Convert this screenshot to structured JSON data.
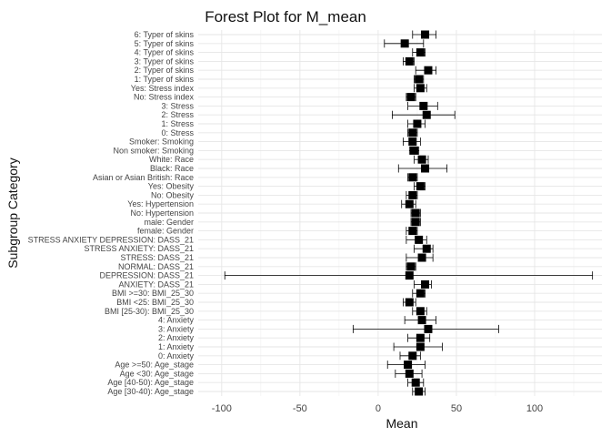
{
  "chart_data": {
    "type": "forest",
    "title": "Forest Plot for M_mean",
    "xlabel": "Mean",
    "ylabel": "Subgroup Category",
    "xlim": [
      -115,
      143
    ],
    "x_ticks": [
      -100,
      -50,
      0,
      50,
      100
    ],
    "grid": true,
    "legend": "none",
    "categories": [
      "6: Typer of skins",
      "5: Typer of skins",
      "4: Typer of skins",
      "3: Typer of skins",
      "2: Typer of skins",
      "1: Typer of skins",
      "Yes: Stress index",
      "No: Stress index",
      "3: Stress",
      "2: Stress",
      "1: Stress",
      "0: Stress",
      "Smoker: Smoking",
      "Non smoker: Smoking",
      "White: Race",
      "Black: Race",
      "Asian or Asian British: Race",
      "Yes: Obesity",
      "No: Obesity",
      "Yes: Hypertension",
      "No: Hypertension",
      "male: Gender",
      "female: Gender",
      "STRESS ANXIETY DEPRESSION: DASS_21",
      "STRESS ANXIETY: DASS_21",
      "STRESS: DASS_21",
      "NORMAL: DASS_21",
      "DEPRESSION: DASS_21",
      "ANXIETY: DASS_21",
      "BMI >=30: BMI_25_30",
      "BMI <25: BMI_25_30",
      "BMI [25-30): BMI_25_30",
      "4: Anxiety",
      "3: Anxiety",
      "2: Anxiety",
      "1: Anxiety",
      "0: Anxiety",
      "Age >=50: Age_stage",
      "Age <30: Age_stage",
      "Age [40-50): Age_stage",
      "Age [30-40): Age_stage"
    ],
    "series": [
      {
        "mean": [
          30,
          17,
          27,
          20,
          32,
          26,
          27,
          21,
          29,
          31,
          25,
          22,
          22,
          23,
          28,
          30,
          22,
          27,
          22,
          20,
          24,
          24,
          22,
          26,
          31,
          28,
          21,
          20,
          30,
          27,
          20,
          27,
          28,
          32,
          27,
          27,
          22,
          19,
          20,
          24,
          26
        ],
        "lower": [
          22,
          4,
          22,
          16,
          24,
          23,
          23,
          18,
          19,
          9,
          19,
          19,
          16,
          20,
          23,
          13,
          19,
          23,
          18,
          15,
          21,
          21,
          18,
          18,
          23,
          18,
          18,
          -98,
          23,
          22,
          16,
          22,
          17,
          -16,
          19,
          10,
          14,
          6,
          11,
          19,
          22
        ],
        "upper": [
          37,
          29,
          30,
          23,
          37,
          29,
          31,
          24,
          38,
          49,
          30,
          25,
          27,
          26,
          32,
          44,
          25,
          30,
          25,
          24,
          27,
          27,
          25,
          31,
          35,
          35,
          24,
          137,
          34,
          30,
          24,
          31,
          37,
          77,
          33,
          41,
          27,
          30,
          28,
          29,
          30
        ]
      }
    ]
  }
}
